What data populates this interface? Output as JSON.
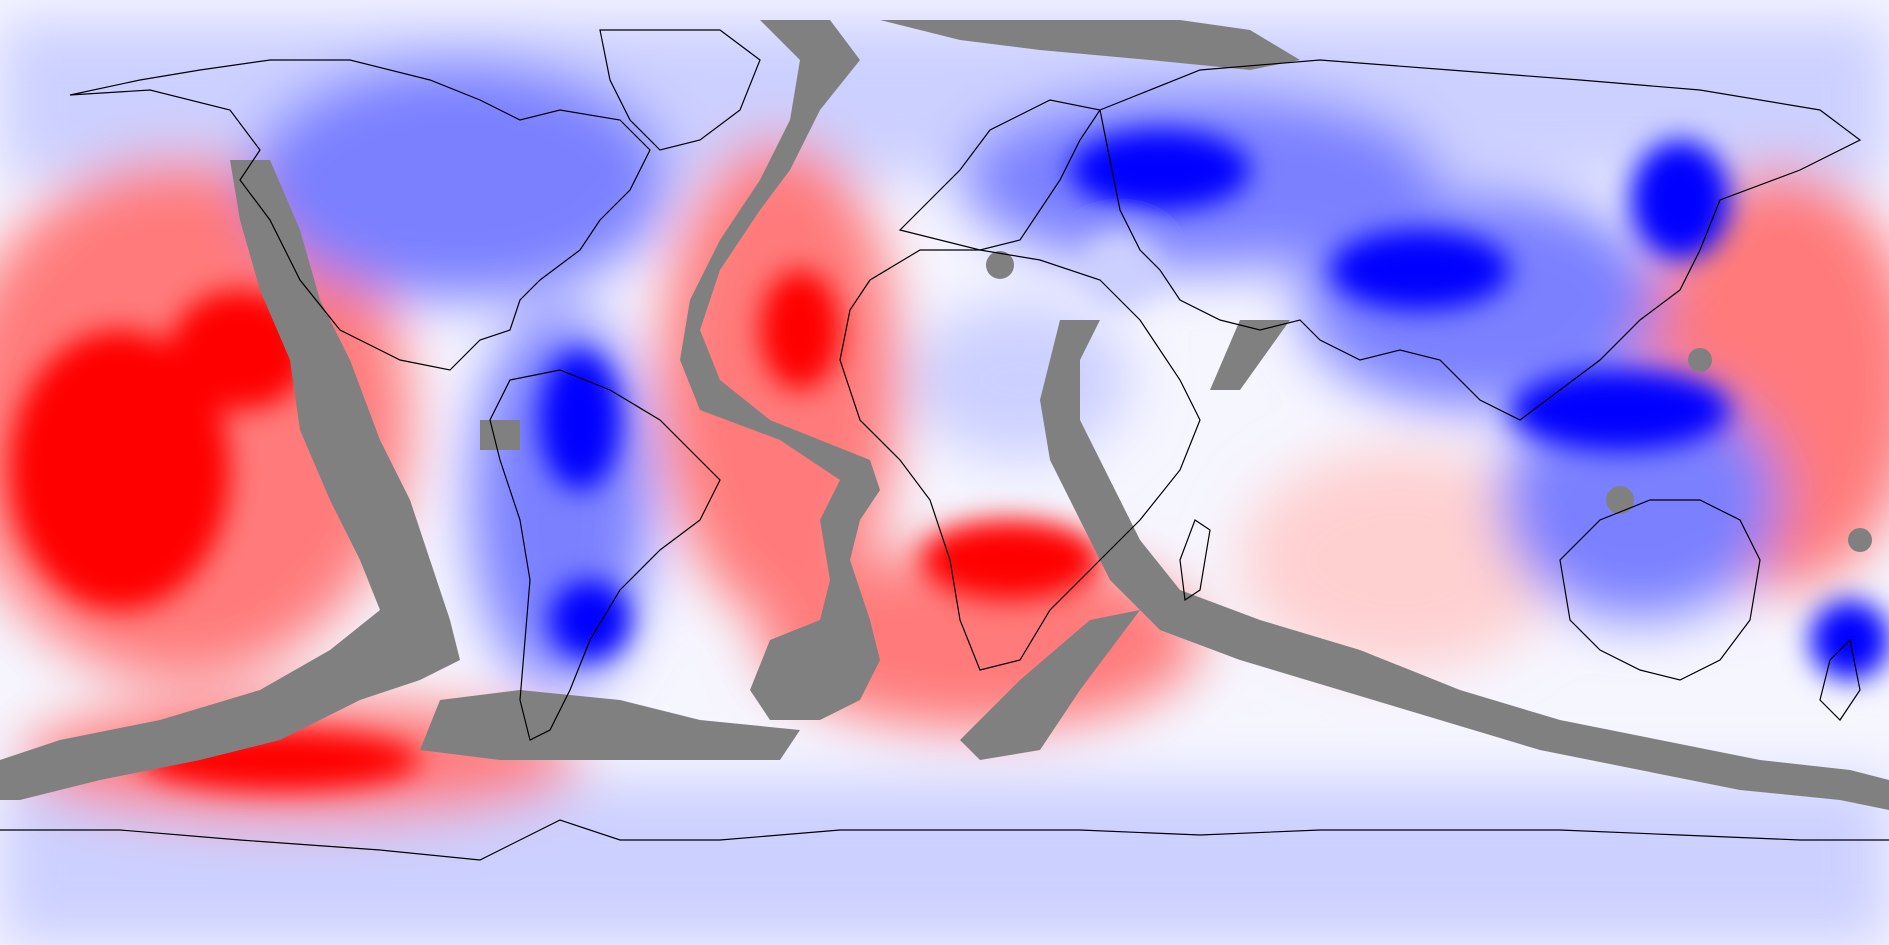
{
  "map": {
    "projection": "equirectangular",
    "colors": {
      "strong_positive": "#ff0000",
      "positive": "#ff7a7a",
      "weak_positive": "#ffd0d0",
      "neutral": "#f6f6ff",
      "weak_negative": "#ccd0ff",
      "negative": "#7a80ff",
      "strong_negative": "#0000ff",
      "masked": "#808080",
      "coastline": "#000000"
    },
    "features": [
      "temperature-anomaly-field",
      "ridge-mask",
      "coastlines"
    ]
  }
}
